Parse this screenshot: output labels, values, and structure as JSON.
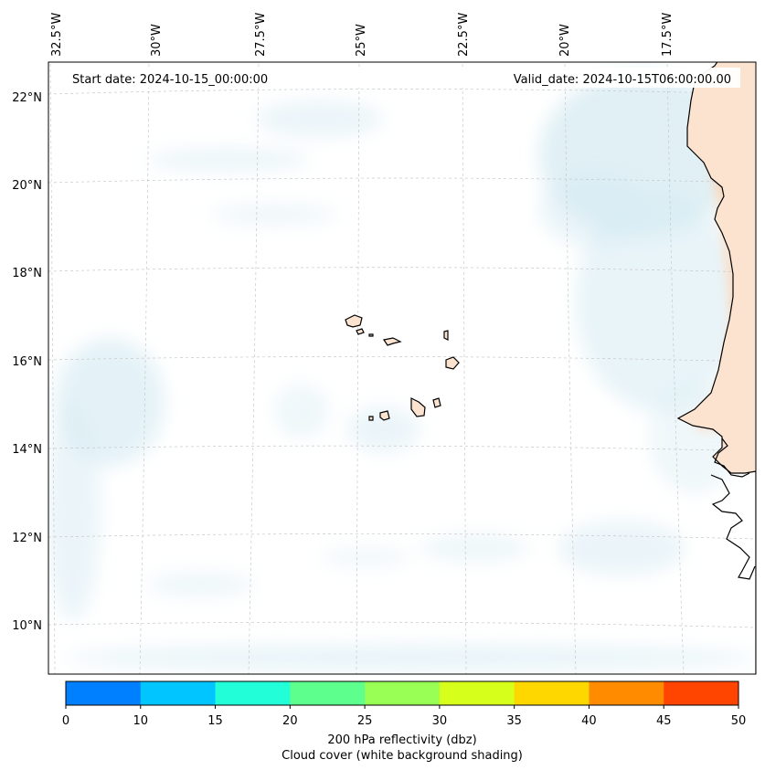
{
  "map": {
    "start_date_label": "Start date: 2024-10-15_00:00:00",
    "valid_date_label": "Valid_date: 2024-10-15T06:00:00.00",
    "lon_labels": [
      "32.5°W",
      "30°W",
      "27.5°W",
      "25°W",
      "22.5°W",
      "20°W",
      "17.5°W"
    ],
    "lat_labels": [
      "22°N",
      "20°N",
      "18°N",
      "16°N",
      "14°N",
      "12°N",
      "10°N"
    ],
    "land_fill": "#fbe3cf",
    "cloud_color": "#dff0f5",
    "heat_color": "#f4b27e"
  },
  "colorbar": {
    "ticks": [
      "0",
      "10",
      "15",
      "20",
      "25",
      "30",
      "35",
      "40",
      "45",
      "50"
    ],
    "colors": [
      "#007fff",
      "#00c5ff",
      "#22ffd8",
      "#5dff8d",
      "#9aff55",
      "#d6ff1c",
      "#ffd700",
      "#ff8c00",
      "#ff4500"
    ],
    "label_line1": "200 hPa reflectivity (dbz)",
    "label_line2": "Cloud cover (white background shading)"
  }
}
